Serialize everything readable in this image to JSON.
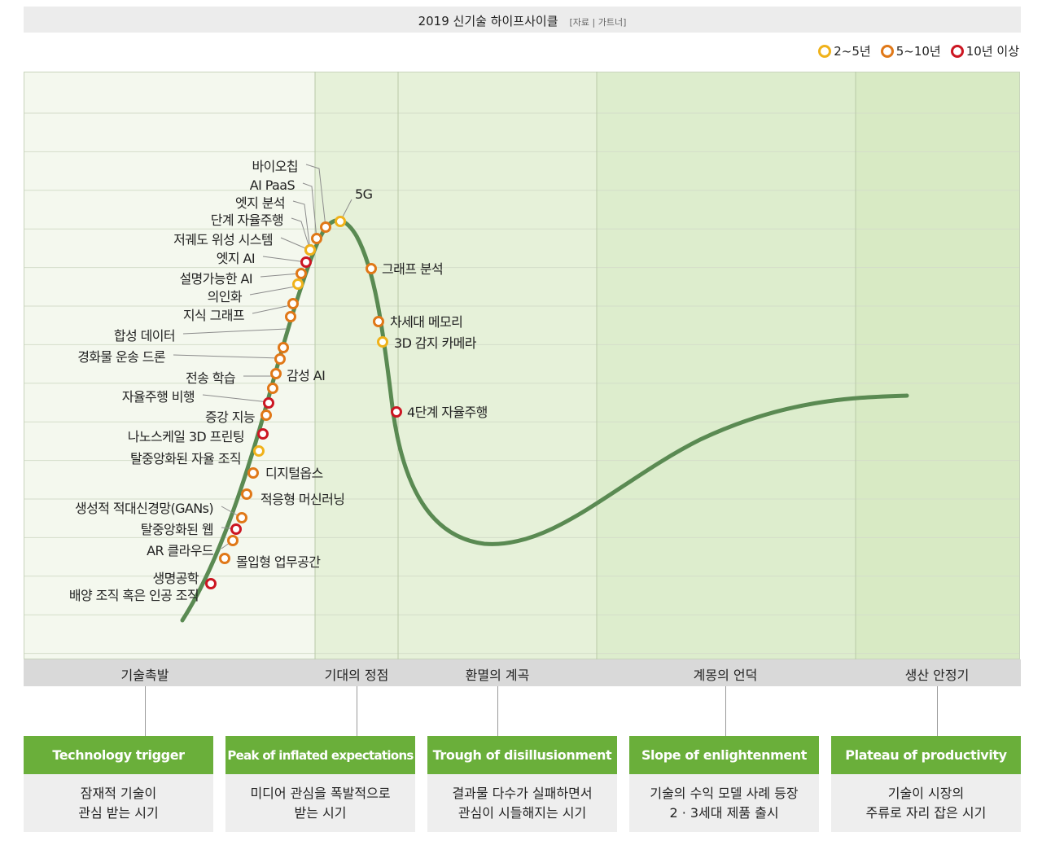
{
  "title": "2019 신기술 하이프사이클",
  "source": "[자료 | 가트너]",
  "legend": [
    {
      "label": "2~5년",
      "color": "#f0b21a"
    },
    {
      "label": "5~10년",
      "color": "#e07818"
    },
    {
      "label": "10년 이상",
      "color": "#cc1622"
    }
  ],
  "colors": {
    "curve": "#5a8a52",
    "panel_light": "#f4f8ee",
    "panel_green": "#e6f1d9",
    "panel_green_dark": "#d8eac4",
    "card_head": "#6aaf3a"
  },
  "technologies": [
    {
      "label": "바이오칩",
      "category": 1
    },
    {
      "label": "AI PaaS",
      "category": 1
    },
    {
      "label": "엣지 분석",
      "category": 1
    },
    {
      "label": "단계 자율주행",
      "category": 1
    },
    {
      "label": "저궤도 위성 시스템",
      "category": 0
    },
    {
      "label": "엣지 AI",
      "category": 2
    },
    {
      "label": "설명가능한 AI",
      "category": 1
    },
    {
      "label": "의인화",
      "category": 0
    },
    {
      "label": "지식 그래프",
      "category": 1
    },
    {
      "label": "합성 데이터",
      "category": 1
    },
    {
      "label": "경화물 운송 드론",
      "category": 1
    },
    {
      "label": "전송 학습",
      "category": 1
    },
    {
      "label": "감성 AI",
      "category": 1
    },
    {
      "label": "자율주행 비행",
      "category": 1
    },
    {
      "label": "증강 지능",
      "category": 2
    },
    {
      "label": "나노스케일 3D 프린팅",
      "category": 1
    },
    {
      "label": "탈중앙화된 자율 조직",
      "category": 2
    },
    {
      "label": "디지털옵스",
      "category": 0
    },
    {
      "label": "적응형 머신러닝",
      "category": 1
    },
    {
      "label": "생성적 적대신경망(GANs)",
      "category": 1
    },
    {
      "label": "탈중앙화된 웹",
      "category": 1
    },
    {
      "label": "AR 클라우드",
      "category": 2
    },
    {
      "label": "몰입형 업무공간",
      "category": 1
    },
    {
      "label": "생명공학",
      "category": 1
    },
    {
      "label": "배양 조직 혹은 인공 조직",
      "category": 2
    },
    {
      "label": "5G",
      "category": 0
    },
    {
      "label": "그래프 분석",
      "category": 1
    },
    {
      "label": "차세대 메모리",
      "category": 1
    },
    {
      "label": "3D 감지 카메라",
      "category": 0
    },
    {
      "label": "4단계 자율주행",
      "category": 2
    }
  ],
  "phases": [
    {
      "name": "기술촉발",
      "title_en": "Technology trigger",
      "desc1": "잠재적 기술이",
      "desc2": "관심 받는 시기"
    },
    {
      "name": "기대의 정점",
      "title_en": "Peak of inflated expectations",
      "desc1": "미디어 관심을 폭발적으로",
      "desc2": "받는 시기"
    },
    {
      "name": "환멸의 계곡",
      "title_en": "Trough of disillusionment",
      "desc1": "결과물 다수가 실패하면서",
      "desc2": "관심이 시들해지는 시기"
    },
    {
      "name": "계몽의 언덕",
      "title_en": "Slope of enlightenment",
      "desc1": "기술의 수익 모델 사례 등장",
      "desc2": "2 · 3세대 제품 출시"
    },
    {
      "name": "생산 안정기",
      "title_en": "Plateau of productivity",
      "desc1": "기술이 시장의",
      "desc2": "주류로 자리 잡은 시기"
    }
  ]
}
